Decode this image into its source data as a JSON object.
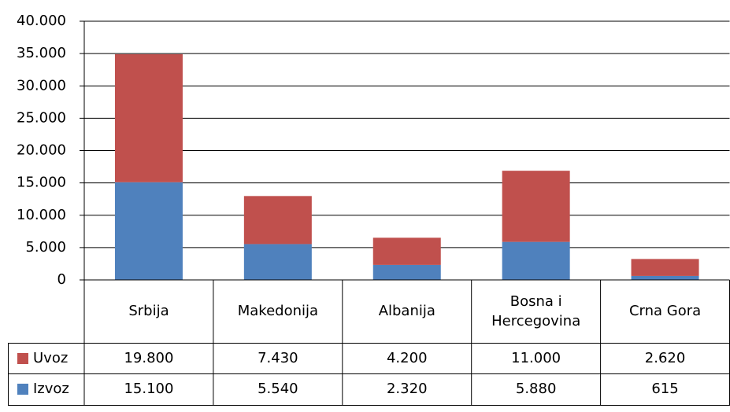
{
  "chart_data": {
    "type": "bar",
    "stacked": true,
    "categories": [
      "Srbija",
      "Makedonija",
      "Albanija",
      "Bosna i Hercegovina",
      "Crna Gora"
    ],
    "series": [
      {
        "name": "Izvoz",
        "color": "#4f81bd",
        "values": [
          15100,
          5540,
          2320,
          5880,
          615
        ],
        "value_labels": [
          "15.100",
          "5.540",
          "2.320",
          "5.880",
          "615"
        ]
      },
      {
        "name": "Uvoz",
        "color": "#c0504d",
        "values": [
          19800,
          7430,
          4200,
          11000,
          2620
        ],
        "value_labels": [
          "19.800",
          "7.430",
          "4.200",
          "11.000",
          "2.620"
        ]
      }
    ],
    "ylim": [
      0,
      40000
    ],
    "yticks": [
      0,
      {
        "value": 5000,
        "label": "5.000"
      },
      {
        "value": 10000,
        "label": "10.000"
      },
      {
        "value": 15000,
        "label": "15.000"
      },
      {
        "value": 20000,
        "label": "20.000"
      },
      {
        "value": 25000,
        "label": "25.000"
      },
      {
        "value": 30000,
        "label": "30.000"
      },
      {
        "value": 35000,
        "label": "35.000"
      },
      {
        "value": 40000,
        "label": "40.000"
      }
    ],
    "grid": true,
    "data_table": true
  }
}
